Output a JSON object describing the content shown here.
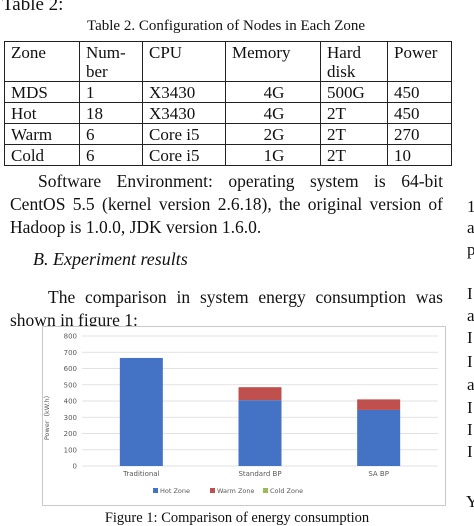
{
  "table_label": "Table 2:",
  "table_caption": "Table 2.  Configuration of Nodes in Each Zone",
  "table": {
    "headers": [
      [
        "Zone"
      ],
      [
        "Num-",
        "ber"
      ],
      [
        "CPU"
      ],
      [
        "Memory"
      ],
      [
        "Hard",
        "disk"
      ],
      [
        "Power"
      ]
    ],
    "rows": [
      [
        "MDS",
        "1",
        "X3430",
        "4G",
        "500G",
        "450"
      ],
      [
        "Hot",
        "18",
        "X3430",
        "4G",
        "2T",
        "450"
      ],
      [
        "Warm",
        "6",
        "Core i5",
        "2G",
        "2T",
        "270"
      ],
      [
        "Cold",
        "6",
        "Core i5",
        "1G",
        "2T",
        "10"
      ]
    ]
  },
  "software_paragraph": "Software Environment: operating system is 64-bit CentOS 5.5 (kernel version 2.6.18), the original version of Hadoop is 1.0.0, JDK version 1.6.0.",
  "section_heading": "B. Experiment results",
  "comparison_paragraph": "The comparison in system energy consumption was shown in figure 1:",
  "figure_caption": "Figure 1: Comparison of energy consumption",
  "right_fragments": [
    "1",
    "a",
    "p",
    "I",
    "a",
    "I",
    "I",
    "a",
    "I",
    "I",
    "I",
    "Y"
  ],
  "chart_data": {
    "type": "bar",
    "stacked": true,
    "categories": [
      "Traditional",
      "Standard BP",
      "SA BP"
    ],
    "series": [
      {
        "name": "Hot Zone",
        "values": [
          665,
          405,
          345
        ],
        "color": "#4472C4"
      },
      {
        "name": "Warm Zone",
        "values": [
          0,
          80,
          65
        ],
        "color": "#C0504D"
      },
      {
        "name": "Cold Zone",
        "values": [
          0,
          0,
          0
        ],
        "color": "#9BBB59"
      }
    ],
    "ylabel": "Power（kW.h）",
    "ylim": [
      0,
      800
    ],
    "yticks": [
      "0",
      "100",
      "200",
      "300",
      "400",
      "500",
      "600",
      "700",
      "800"
    ],
    "grid": true,
    "legend_position": "bottom",
    "border_color": "#C9C9C9",
    "grid_color": "#D9D9D9"
  }
}
